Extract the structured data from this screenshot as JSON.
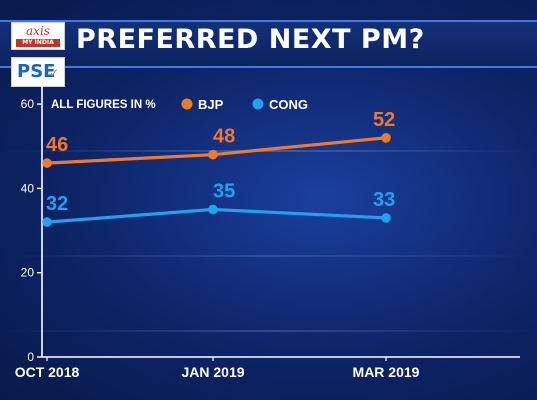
{
  "header": {
    "title": "PREFERRED NEXT PM?",
    "logos": {
      "top_word": "axis",
      "top_sub": "MY INDIA",
      "bottom_word": "PSE"
    }
  },
  "chart_data": {
    "type": "line",
    "title": "PREFERRED NEXT PM?",
    "note": "ALL FIGURES IN %",
    "categories": [
      "OCT 2018",
      "JAN 2019",
      "MAR 2019"
    ],
    "series": [
      {
        "name": "BJP",
        "values": [
          46,
          48,
          52
        ],
        "color": "#f07a2a"
      },
      {
        "name": "CONG",
        "values": [
          32,
          35,
          33
        ],
        "color": "#1fa3f0"
      }
    ],
    "yticks": [
      0,
      20,
      40,
      60
    ],
    "ylim": [
      0,
      65
    ],
    "grid": false,
    "legend_position": "top"
  }
}
